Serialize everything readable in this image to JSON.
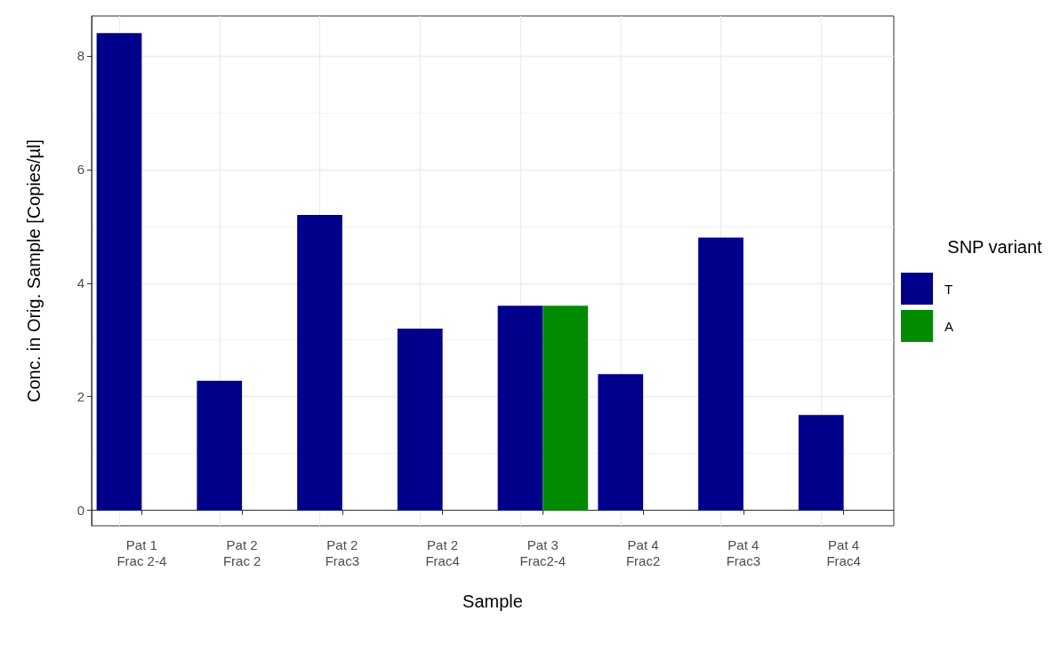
{
  "chart_data": {
    "type": "bar",
    "xlabel": "Sample",
    "ylabel": "Conc. in Orig. Sample [Copies/µl]",
    "legend_title": "SNP variant",
    "categories": [
      "Pat 1\nFrac 2-4",
      "Pat 2\nFrac 2",
      "Pat 2\nFrac3",
      "Pat 2\nFrac4",
      "Pat 3\nFrac2-4",
      "Pat 4\nFrac2",
      "Pat 4\nFrac3",
      "Pat 4\nFrac4"
    ],
    "series": [
      {
        "name": "T",
        "color": "#00008b",
        "values": [
          8.4,
          2.28,
          5.2,
          3.2,
          3.6,
          2.4,
          4.8,
          1.68
        ]
      },
      {
        "name": "A",
        "color": "#008b00",
        "values": [
          null,
          null,
          null,
          null,
          3.6,
          null,
          null,
          null
        ]
      }
    ],
    "ylim": [
      -0.27,
      8.7
    ],
    "yticks": [
      0,
      2,
      4,
      6,
      8
    ],
    "grid": true,
    "legend": "right"
  }
}
